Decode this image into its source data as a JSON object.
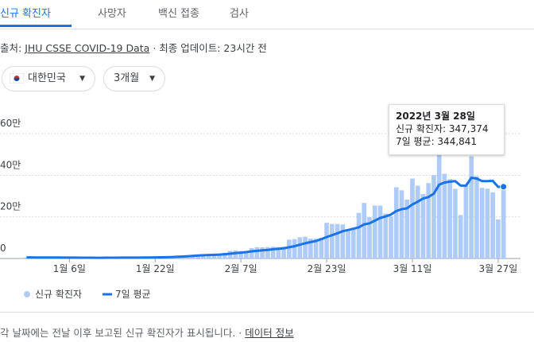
{
  "ui": {
    "tabs": [
      "신규 확진자",
      "사망자",
      "백신 접종",
      "검사"
    ],
    "source_prefix": "출처:",
    "source_link": "JHU CSSE COVID-19 Data",
    "source_suffix": "· 최종 업데이트: 23시간 전",
    "dropdowns": [
      "대한민국",
      "3개월"
    ],
    "tooltip": {
      "date": "2022년 3월 28일",
      "lines": [
        "신규 확진자: 347,374",
        "7일 평균: 344,841"
      ]
    },
    "footer": "각 날짜에는 전날 이후 보고된 신규 확진자가 표시됩니다.",
    "footer_link": "데이터 정보"
  },
  "chart_data": {
    "type": "bar",
    "categories": [
      null,
      null,
      null,
      null,
      null,
      null,
      null,
      null,
      "1월 6일",
      null,
      null,
      null,
      null,
      null,
      null,
      null,
      null,
      null,
      null,
      null,
      null,
      null,
      null,
      null,
      "1월 22일",
      null,
      null,
      null,
      null,
      null,
      null,
      null,
      null,
      null,
      null,
      null,
      null,
      null,
      null,
      null,
      "2월 7일",
      null,
      null,
      null,
      null,
      null,
      null,
      null,
      null,
      null,
      null,
      null,
      null,
      null,
      null,
      null,
      "2월 23일",
      null,
      null,
      null,
      null,
      null,
      null,
      null,
      null,
      null,
      null,
      null,
      null,
      null,
      null,
      null,
      "3월 11일",
      null,
      null,
      null,
      null,
      null,
      null,
      null,
      null,
      null,
      null,
      null,
      null,
      null,
      null,
      null,
      "3월 27일",
      null
    ],
    "series": [
      {
        "name": "신규 확진자",
        "type": "bar",
        "color": "#aecbfa",
        "values": [
          5400,
          5000,
          5000,
          4400,
          3800,
          3100,
          4900,
          4400,
          4100,
          4000,
          3700,
          3300,
          3000,
          2800,
          4400,
          4500,
          4500,
          4400,
          4200,
          3900,
          4000,
          5800,
          6600,
          6800,
          7000,
          7600,
          8000,
          8500,
          13000,
          14500,
          16000,
          17500,
          17000,
          18000,
          20000,
          20000,
          22900,
          27400,
          36300,
          38700,
          35300,
          36700,
          49500,
          54100,
          53900,
          54900,
          56400,
          55000,
          57100,
          90400,
          93100,
          102200,
          104800,
          95300,
          95600,
          99500,
          171400,
          166200,
          165800,
          163500,
          139600,
          138900,
          219200,
          266800,
          198800,
          254300,
          254300,
          215700,
          202700,
          342400,
          327500,
          282900,
          383600,
          350100,
          309700,
          362300,
          400700,
          621300,
          407000,
          381400,
          334600,
          209100,
          353900,
          490800,
          395500,
          339500,
          335500,
          318100,
          187200,
          347374
        ]
      },
      {
        "name": "7일 평균",
        "type": "line",
        "color": "#1a73e8",
        "values": [
          5300,
          5200,
          5100,
          5000,
          4800,
          4500,
          4400,
          4300,
          4200,
          4100,
          4000,
          3900,
          3700,
          3500,
          3600,
          3700,
          3900,
          4000,
          4100,
          4100,
          4100,
          4300,
          4600,
          4900,
          5300,
          5700,
          6200,
          6800,
          7900,
          9000,
          10700,
          12400,
          14200,
          15700,
          16900,
          17700,
          18900,
          20500,
          23000,
          25700,
          28100,
          30500,
          34300,
          36800,
          39300,
          41400,
          44200,
          46700,
          49000,
          54000,
          59400,
          66200,
          73100,
          78700,
          84000,
          93000,
          103000,
          112000,
          121000,
          131000,
          137000,
          143000,
          150000,
          164000,
          169000,
          182000,
          195000,
          202000,
          211000,
          228000,
          237000,
          241000,
          260000,
          273000,
          288000,
          295000,
          312000,
          355000,
          365000,
          369000,
          372000,
          350000,
          350000,
          388000,
          384000,
          372000,
          372000,
          373000,
          344000,
          344841
        ]
      }
    ],
    "ylim": [
      0,
      600000
    ],
    "yticks": [
      0,
      {
        "value": 200000,
        "label": "20만"
      },
      {
        "value": 400000,
        "label": "40만"
      },
      {
        "value": 600000,
        "label": "60만"
      }
    ],
    "grid": true
  }
}
